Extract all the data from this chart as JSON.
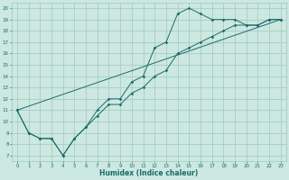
{
  "xlabel": "Humidex (Indice chaleur)",
  "xlim": [
    -0.5,
    23.5
  ],
  "ylim": [
    6.5,
    20.5
  ],
  "xticks": [
    0,
    1,
    2,
    3,
    4,
    5,
    6,
    7,
    8,
    9,
    10,
    11,
    12,
    13,
    14,
    15,
    16,
    17,
    18,
    19,
    20,
    21,
    22,
    23
  ],
  "yticks": [
    7,
    8,
    9,
    10,
    11,
    12,
    13,
    14,
    15,
    16,
    17,
    18,
    19,
    20
  ],
  "bg_color": "#cce8e0",
  "grid_color": "#a0c8c0",
  "line_color": "#1a6b6b",
  "line1_x": [
    0,
    1,
    2,
    3,
    4,
    5,
    6,
    7,
    8,
    9,
    10,
    11,
    12,
    13,
    14,
    15,
    16,
    17,
    18,
    19,
    20,
    21,
    22,
    23
  ],
  "line1_y": [
    11,
    9,
    8.5,
    8.5,
    7,
    8.5,
    9.5,
    11,
    12,
    12,
    13.5,
    14,
    16.5,
    17,
    19.5,
    20,
    19.5,
    19,
    19,
    19,
    18.5,
    18.5,
    19,
    19
  ],
  "line2_x": [
    0,
    1,
    2,
    3,
    4,
    5,
    6,
    7,
    8,
    9,
    10,
    11,
    12,
    13,
    14,
    15,
    16,
    17,
    18,
    19,
    20,
    21,
    22,
    23
  ],
  "line2_y": [
    11,
    9,
    8.5,
    8.5,
    7,
    8.5,
    9.5,
    10.5,
    11.5,
    11.5,
    12.5,
    13,
    14,
    14.5,
    16,
    16.5,
    17,
    17.5,
    18,
    18.5,
    18.5,
    18.5,
    19,
    19
  ],
  "line3_x": [
    0,
    23
  ],
  "line3_y": [
    11,
    19
  ]
}
